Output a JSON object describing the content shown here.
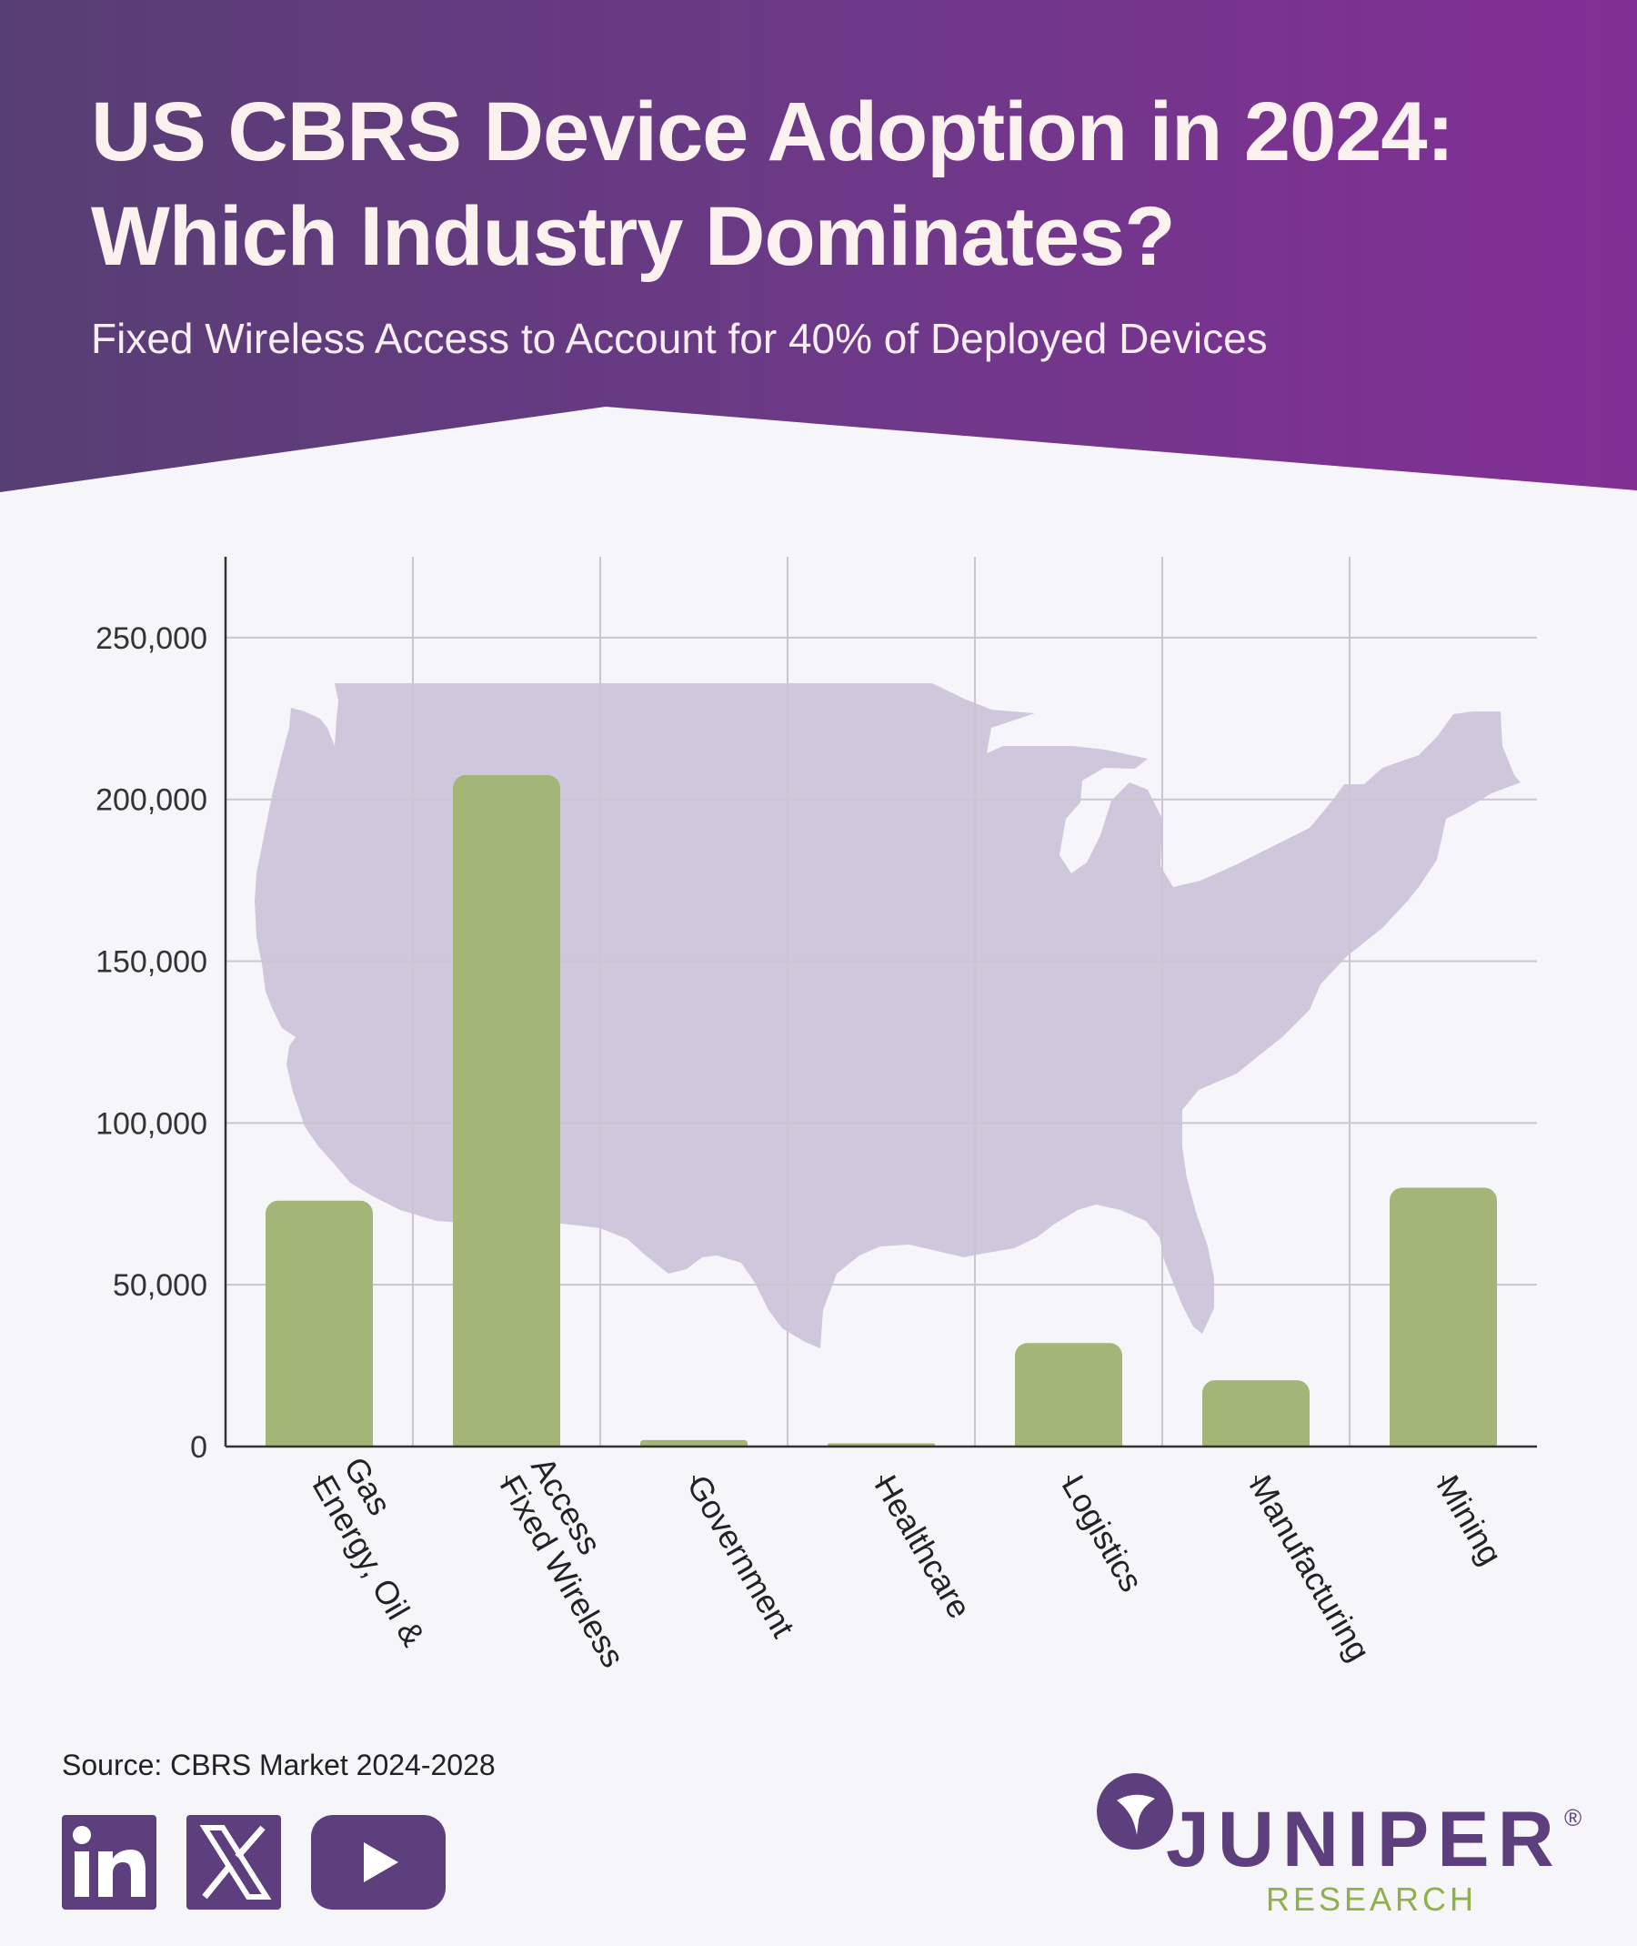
{
  "header": {
    "title_line1": "US CBRS Device Adoption in 2024:",
    "title_line2": "Which Industry Dominates?",
    "subtitle": "Fixed Wireless Access to Account for 40% of Deployed Devices"
  },
  "chart_data": {
    "type": "bar",
    "title": "",
    "xlabel": "",
    "ylabel": "",
    "categories": [
      "Energy, Oil & Gas",
      "Fixed Wireless Access",
      "Government",
      "Healthcare",
      "Logistics",
      "Manufacturing",
      "Mining"
    ],
    "category_lines": [
      [
        "Energy, Oil &",
        "Gas"
      ],
      [
        "Fixed Wireless",
        "Access"
      ],
      [
        "Government"
      ],
      [
        "Healthcare"
      ],
      [
        "Logistics"
      ],
      [
        "Manufacturing"
      ],
      [
        "Mining"
      ]
    ],
    "values": [
      76000,
      207500,
      2000,
      1000,
      32000,
      20500,
      80000
    ],
    "ylim": [
      0,
      275000
    ],
    "yticks": [
      0,
      50000,
      100000,
      150000,
      200000,
      250000
    ],
    "ytick_labels": [
      "0",
      "50,000",
      "100,000",
      "150,000",
      "200,000",
      "250,000"
    ],
    "grid": true,
    "bar_color": "#a3b577",
    "background_image": "us-map-silhouette"
  },
  "footer": {
    "source": "Source: CBRS Market 2024-2028",
    "social_icons": [
      "linkedin-icon",
      "x-icon",
      "youtube-icon"
    ],
    "icon_color": "#5d3f7d",
    "logo_word": "JUNIPER",
    "logo_sub": "RESEARCH",
    "logo_reg": "®"
  }
}
